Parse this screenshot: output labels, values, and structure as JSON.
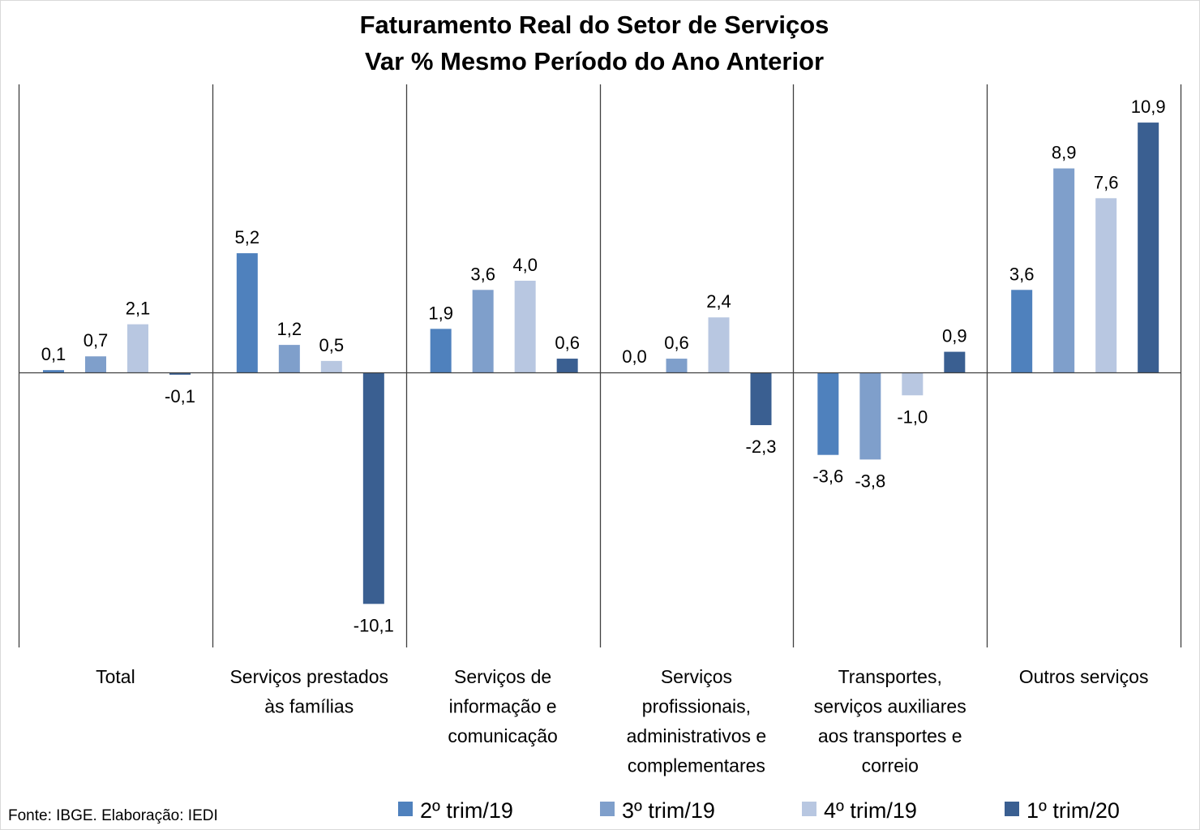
{
  "chart_data": {
    "type": "bar",
    "title": [
      "Faturamento Real do Setor de Serviços",
      "Var % Mesmo Período do Ano Anterior"
    ],
    "categories": [
      [
        "Total"
      ],
      [
        "Serviços prestados",
        "às famílias"
      ],
      [
        "Serviços de",
        "informação e",
        "comunicação"
      ],
      [
        "Serviços",
        "profissionais,",
        "administrativos e",
        "complementares"
      ],
      [
        "Transportes,",
        "serviços auxiliares",
        "aos transportes e",
        "correio"
      ],
      [
        "Outros serviços"
      ]
    ],
    "series": [
      {
        "name": "2º trim/19",
        "color": "#4f81bd",
        "values": [
          0.1,
          5.2,
          1.9,
          0.0,
          -3.6,
          3.6
        ],
        "labels": [
          "0,1",
          "5,2",
          "1,9",
          "0,0",
          "-3,6",
          "3,6"
        ]
      },
      {
        "name": "3º trim/19",
        "color": "#7f9fcb",
        "values": [
          0.7,
          1.2,
          3.6,
          0.6,
          -3.8,
          8.9
        ],
        "labels": [
          "0,7",
          "1,2",
          "3,6",
          "0,6",
          "-3,8",
          "8,9"
        ]
      },
      {
        "name": "4º trim/19",
        "color": "#b8c7e1",
        "values": [
          2.1,
          0.5,
          4.0,
          2.4,
          -1.0,
          7.6
        ],
        "labels": [
          "2,1",
          "0,5",
          "4,0",
          "2,4",
          "-1,0",
          "7,6"
        ]
      },
      {
        "name": "1º trim/20",
        "color": "#3a5f91",
        "values": [
          -0.1,
          -10.1,
          0.6,
          -2.3,
          0.9,
          10.9
        ],
        "labels": [
          "-0,1",
          "-10,1",
          "0,6",
          "-2,3",
          "0,9",
          "10,9"
        ]
      }
    ],
    "ylim": [
      -11.8,
      12.4
    ],
    "grid": false,
    "legend_position": "bottom"
  },
  "source": "Fonte: IBGE. Elaboração: IEDI"
}
